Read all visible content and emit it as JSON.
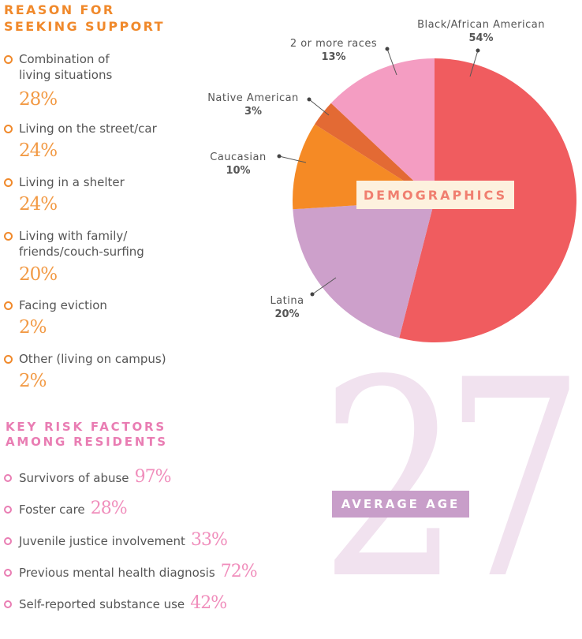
{
  "reasons": {
    "title_line1": "REASON FOR",
    "title_line2": "SEEKING SUPPORT",
    "items": [
      {
        "label": "Combination of\nliving situations",
        "pct": "28%"
      },
      {
        "label": "Living on the street/car",
        "pct": "24%"
      },
      {
        "label": "Living in a shelter",
        "pct": "24%"
      },
      {
        "label": "Living with family/\nfriends/couch-surfing",
        "pct": "20%"
      },
      {
        "label": "Facing eviction",
        "pct": "2%"
      },
      {
        "label": "Other (living on campus)",
        "pct": "2%"
      }
    ]
  },
  "risk": {
    "title_line1": "KEY RISK FACTORS",
    "title_line2": "AMONG RESIDENTS",
    "items": [
      {
        "label": "Survivors of abuse",
        "pct": "97%"
      },
      {
        "label": "Foster care",
        "pct": "28%"
      },
      {
        "label": "Juvenile justice involvement",
        "pct": "33%"
      },
      {
        "label": "Previous mental health diagnosis",
        "pct": "72%"
      },
      {
        "label": "Self-reported substance use",
        "pct": "42%"
      }
    ]
  },
  "demographics_label": "DEMOGRAPHICS",
  "average_age": {
    "value": "27",
    "label": "AVERAGE AGE"
  },
  "chart_data": {
    "type": "pie",
    "title": "DEMOGRAPHICS",
    "slices": [
      {
        "label": "Black/African American",
        "pct_label": "54%",
        "value": 54,
        "color": "#f05c5f"
      },
      {
        "label": "Latina",
        "pct_label": "20%",
        "value": 20,
        "color": "#cda0cb"
      },
      {
        "label": "Caucasian",
        "pct_label": "10%",
        "value": 10,
        "color": "#f58a25"
      },
      {
        "label": "Native American",
        "pct_label": "3%",
        "value": 3,
        "color": "#e36a34"
      },
      {
        "label": "2 or more races",
        "pct_label": "13%",
        "value": 13,
        "color": "#f49dc2"
      }
    ]
  },
  "colors": {
    "orange_accent": "#f0892b",
    "pink_accent": "#e97db3",
    "age_box": "#c89ec9",
    "demographics_box": "#fdf1de"
  }
}
